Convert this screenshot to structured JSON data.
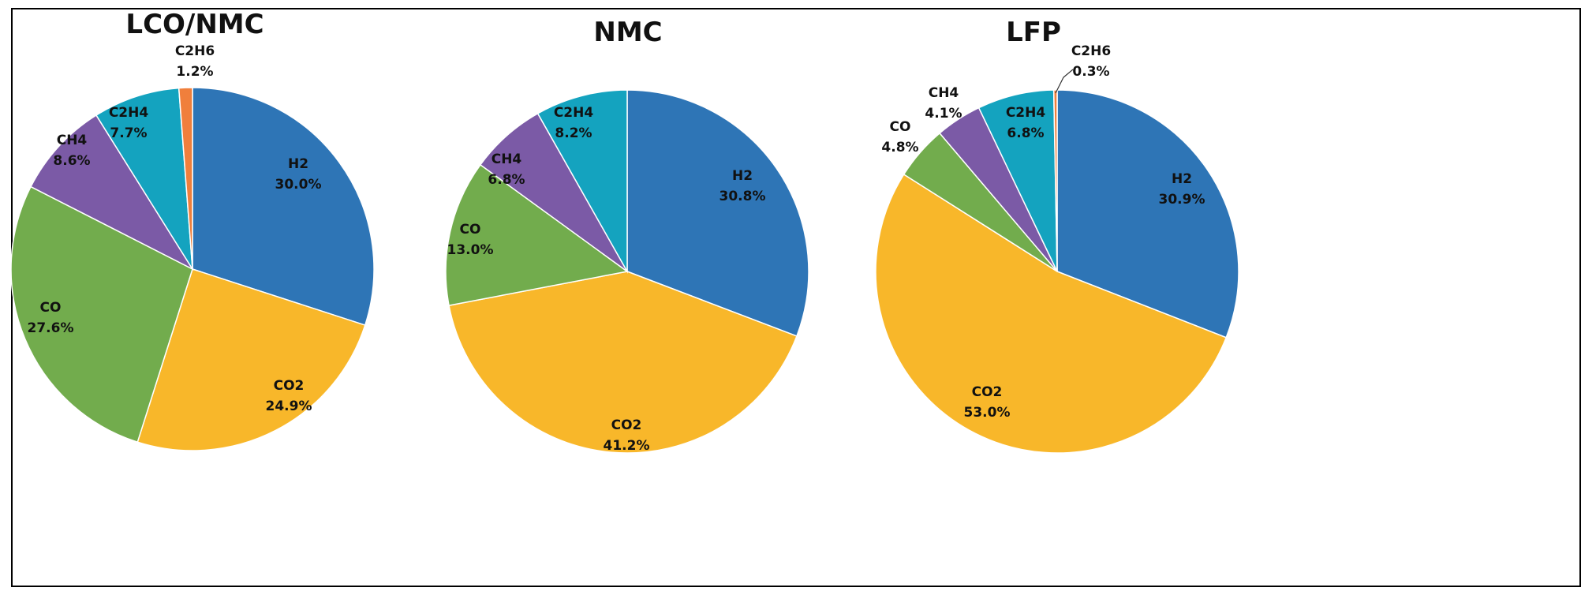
{
  "chart_data": [
    {
      "type": "pie",
      "title": "LCO/NMC",
      "slices": [
        {
          "name": "H2",
          "value": 30.0,
          "label": "30.0%"
        },
        {
          "name": "CO2",
          "value": 24.9,
          "label": "24.9%"
        },
        {
          "name": "CO",
          "value": 27.6,
          "label": "27.6%"
        },
        {
          "name": "CH4",
          "value": 8.6,
          "label": "8.6%"
        },
        {
          "name": "C2H4",
          "value": 7.7,
          "label": "7.7%"
        },
        {
          "name": "C2H6",
          "value": 1.2,
          "label": "1.2%"
        }
      ]
    },
    {
      "type": "pie",
      "title": "NMC",
      "slices": [
        {
          "name": "H2",
          "value": 30.8,
          "label": "30.8%"
        },
        {
          "name": "CO2",
          "value": 41.2,
          "label": "41.2%"
        },
        {
          "name": "CO",
          "value": 13.0,
          "label": "13.0%"
        },
        {
          "name": "CH4",
          "value": 6.8,
          "label": "6.8%"
        },
        {
          "name": "C2H4",
          "value": 8.2,
          "label": "8.2%"
        }
      ]
    },
    {
      "type": "pie",
      "title": "LFP",
      "slices": [
        {
          "name": "H2",
          "value": 30.9,
          "label": "30.9%"
        },
        {
          "name": "CO2",
          "value": 53.0,
          "label": "53.0%"
        },
        {
          "name": "CO",
          "value": 4.8,
          "label": "4.8%"
        },
        {
          "name": "CH4",
          "value": 4.1,
          "label": "4.1%"
        },
        {
          "name": "C2H4",
          "value": 6.8,
          "label": "6.8%"
        },
        {
          "name": "C2H6",
          "value": 0.3,
          "label": "0.3%"
        }
      ]
    }
  ],
  "colors": {
    "H2": "#2e75b6",
    "CO2": "#f8b72a",
    "CO": "#72ac4d",
    "CH4": "#7b5aa6",
    "C2H4": "#14a3bf",
    "C2H6": "#f07f3c"
  }
}
